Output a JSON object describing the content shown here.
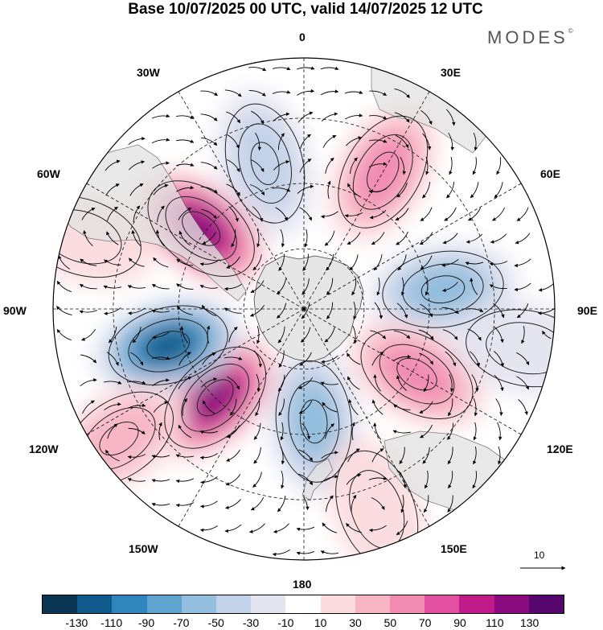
{
  "title": "Base 10/07/2025 00 UTC, valid 14/07/2025 12 UTC",
  "brand": "MODES",
  "brand_mark": "©",
  "longitude_labels": {
    "top": "0",
    "top_left": "30W",
    "top_right": "30E",
    "left_upper": "60W",
    "right_upper": "60E",
    "left": "90W",
    "right": "90E",
    "left_lower": "120W",
    "right_lower": "120E",
    "bottom_left": "150W",
    "bottom_right": "150E",
    "bottom": "180"
  },
  "reference_vector_label": "10",
  "colorbar": {
    "colors": [
      "#0a3553",
      "#0f5a8b",
      "#2f86bd",
      "#5ea4cf",
      "#93bedd",
      "#c2d2e8",
      "#e5e4f1",
      "#ffffff",
      "#fbdde0",
      "#f8b5c4",
      "#f18bb2",
      "#e3509f",
      "#bf1b8a",
      "#8b0a7d",
      "#54066d"
    ],
    "tick_labels": [
      "-130",
      "-110",
      "-90",
      "-70",
      "-50",
      "-30",
      "-10",
      "10",
      "30",
      "50",
      "70",
      "90",
      "110",
      "130"
    ]
  },
  "anomaly_centers": [
    {
      "lon_deg": -15,
      "colat_frac": 0.6,
      "value": -45
    },
    {
      "lon_deg": 30,
      "colat_frac": 0.63,
      "value": 75
    },
    {
      "lon_deg": 82,
      "colat_frac": 0.56,
      "value": -75
    },
    {
      "lon_deg": 120,
      "colat_frac": 0.52,
      "value": 75
    },
    {
      "lon_deg": 175,
      "colat_frac": 0.45,
      "value": -75
    },
    {
      "lon_deg": -135,
      "colat_frac": 0.5,
      "value": 120
    },
    {
      "lon_deg": -105,
      "colat_frac": 0.56,
      "value": -125
    },
    {
      "lon_deg": -52,
      "colat_frac": 0.52,
      "value": 120
    },
    {
      "lon_deg": -72,
      "colat_frac": 0.93,
      "value": 30
    },
    {
      "lon_deg": -125,
      "colat_frac": 0.9,
      "value": 45
    },
    {
      "lon_deg": 160,
      "colat_frac": 0.85,
      "value": 35
    },
    {
      "lon_deg": 100,
      "colat_frac": 0.9,
      "value": -25
    }
  ]
}
